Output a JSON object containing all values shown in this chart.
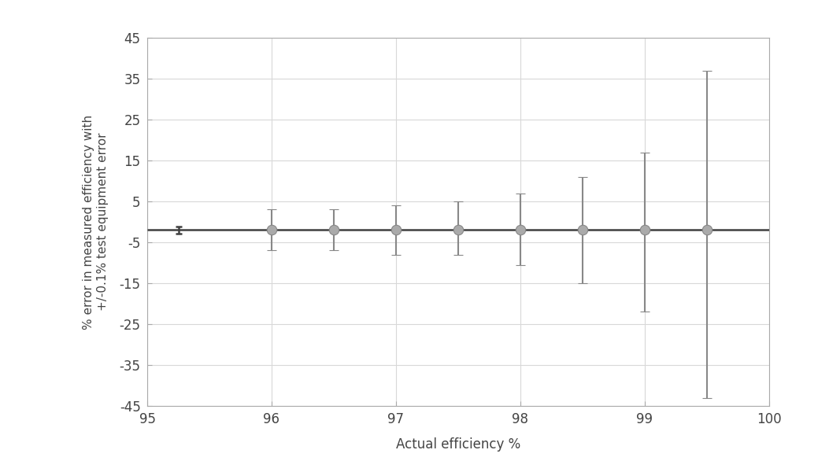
{
  "x": [
    96.0,
    96.5,
    97.0,
    97.5,
    98.0,
    98.5,
    99.0,
    99.5
  ],
  "y": [
    -2.0,
    -2.0,
    -2.0,
    -2.0,
    -2.0,
    -2.0,
    -2.0,
    -2.0
  ],
  "yerr_upper": [
    5.0,
    5.0,
    6.0,
    7.0,
    9.0,
    13.0,
    19.0,
    39.0
  ],
  "yerr_lower": [
    5.0,
    5.0,
    6.0,
    6.0,
    8.5,
    13.0,
    20.0,
    41.0
  ],
  "hline_y": -2.0,
  "hline_x_start": 95.0,
  "hline_x_end": 100.0,
  "xlim": [
    95.0,
    100.0
  ],
  "ylim": [
    -45,
    45
  ],
  "yticks": [
    -45,
    -35,
    -25,
    -15,
    -5,
    5,
    15,
    25,
    35,
    45
  ],
  "ytick_labels": [
    "-45",
    "-35",
    "-25",
    "-15",
    "-5",
    "5",
    "15",
    "25",
    "35",
    "45"
  ],
  "xticks": [
    95,
    96,
    97,
    98,
    99,
    100
  ],
  "xtick_labels": [
    "95",
    "96",
    "97",
    "98",
    "99",
    "100"
  ],
  "xlabel": "Actual efficiency %",
  "ylabel": "% error in measured efficiency with\n+/-0.1% test equipment error",
  "marker_color": "#aaaaaa",
  "line_color": "#404040",
  "errorbar_color": "#888888",
  "grid_color": "#d8d8d8",
  "bg_color": "#ffffff",
  "marker_size": 9,
  "line_width": 1.8,
  "errorbar_lw": 1.5,
  "capsize": 4,
  "tick_cross_x": 95.25,
  "tick_cross_yerr": 0.8
}
